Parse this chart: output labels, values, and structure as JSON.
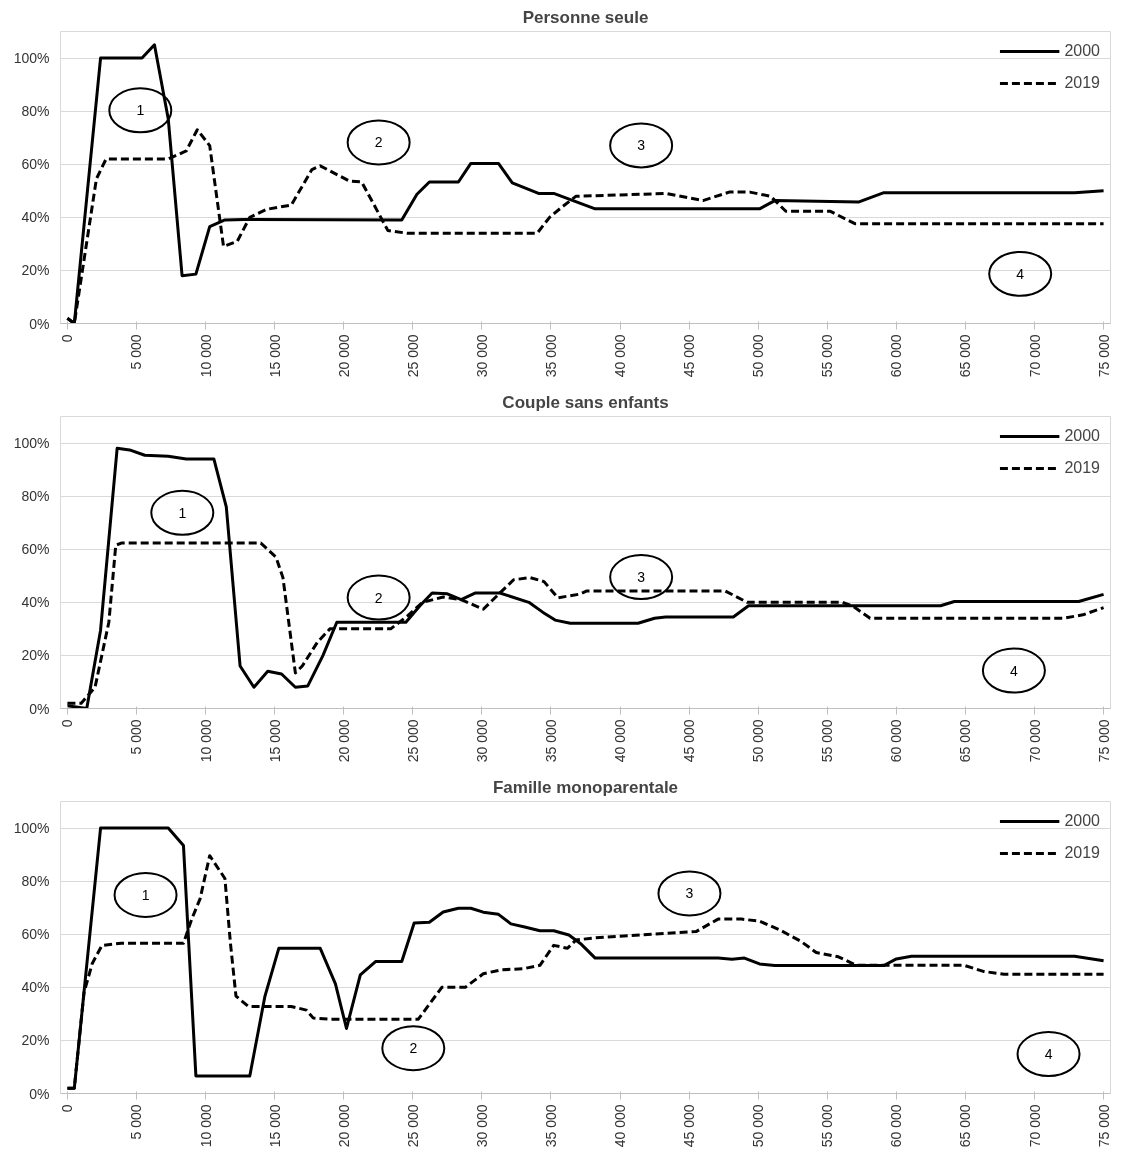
{
  "chart_data": [
    {
      "type": "line",
      "title": "Personne seule",
      "xlim": [
        -500,
        75500
      ],
      "ylim": [
        0,
        110
      ],
      "xticks": [
        0,
        {
          "value": 5000,
          "label": "5 000"
        },
        {
          "value": 10000,
          "label": "10 000"
        },
        {
          "value": 15000,
          "label": "15 000"
        },
        {
          "value": 20000,
          "label": "20 000"
        },
        {
          "value": 25000,
          "label": "25 000"
        },
        {
          "value": 30000,
          "label": "30 000"
        },
        {
          "value": 35000,
          "label": "35 000"
        },
        {
          "value": 40000,
          "label": "40 000"
        },
        {
          "value": 45000,
          "label": "45 000"
        },
        {
          "value": 50000,
          "label": "50 000"
        },
        {
          "value": 55000,
          "label": "55 000"
        },
        {
          "value": 60000,
          "label": "60 000"
        },
        {
          "value": 65000,
          "label": "65 000"
        },
        {
          "value": 70000,
          "label": "70 000"
        },
        {
          "value": 75000,
          "label": "75 000"
        }
      ],
      "yticks": [
        {
          "value": 0,
          "label": "0%"
        },
        {
          "value": 20,
          "label": "20%"
        },
        {
          "value": 40,
          "label": "40%"
        },
        {
          "value": 60,
          "label": "60%"
        },
        {
          "value": 80,
          "label": "80%"
        },
        {
          "value": 100,
          "label": "100%"
        }
      ],
      "grid": "y",
      "legend": "top right",
      "series": [
        {
          "name": "2000",
          "color": "#000000",
          "line_style": "solid",
          "x": [
            0,
            500,
            2400,
            5400,
            6300,
            7300,
            8300,
            9300,
            10300,
            11400,
            12800,
            24200,
            25300,
            26200,
            28300,
            29200,
            31200,
            32200,
            34100,
            35200,
            38200,
            50100,
            51200,
            57300,
            59100,
            72900,
            75000
          ],
          "values": [
            2,
            0,
            100,
            100,
            105,
            77,
            18,
            18.6,
            36.5,
            39,
            39.2,
            39,
            48.7,
            53.3,
            53.3,
            60.3,
            60.3,
            53,
            49,
            49,
            43.2,
            43.2,
            46.3,
            45.8,
            49.3,
            49.3,
            50
          ]
        },
        {
          "name": "2019",
          "color": "#000000",
          "line_style": "dashed",
          "x": [
            0,
            500,
            2100,
            2800,
            7300,
            8600,
            9400,
            10300,
            11300,
            12300,
            13200,
            14400,
            16200,
            17700,
            18300,
            20400,
            21300,
            23200,
            24600,
            34000,
            34900,
            35800,
            36800,
            43300,
            46000,
            47900,
            49400,
            50900,
            52000,
            55200,
            57000,
            75000
          ],
          "values": [
            2,
            0,
            54.5,
            62,
            62,
            65,
            73,
            67,
            29,
            31,
            40,
            43,
            44.6,
            58,
            59.4,
            53.7,
            53.3,
            35,
            34,
            34,
            40,
            43.9,
            47.9,
            49,
            46.3,
            49.5,
            49.5,
            47.9,
            42.3,
            42.3,
            37.6,
            37.6
          ]
        }
      ],
      "annotations": [
        "1",
        "2",
        "3",
        "4"
      ]
    },
    {
      "type": "line",
      "title": "Couple sans enfants",
      "xlim": [
        -500,
        75500
      ],
      "ylim": [
        0,
        110
      ],
      "xticks": [
        0,
        {
          "value": 5000,
          "label": "5 000"
        },
        {
          "value": 10000,
          "label": "10 000"
        },
        {
          "value": 15000,
          "label": "15 000"
        },
        {
          "value": 20000,
          "label": "20 000"
        },
        {
          "value": 25000,
          "label": "25 000"
        },
        {
          "value": 30000,
          "label": "30 000"
        },
        {
          "value": 35000,
          "label": "35 000"
        },
        {
          "value": 40000,
          "label": "40 000"
        },
        {
          "value": 45000,
          "label": "45 000"
        },
        {
          "value": 50000,
          "label": "50 000"
        },
        {
          "value": 55000,
          "label": "55 000"
        },
        {
          "value": 60000,
          "label": "60 000"
        },
        {
          "value": 65000,
          "label": "65 000"
        },
        {
          "value": 70000,
          "label": "70 000"
        },
        {
          "value": 75000,
          "label": "75 000"
        }
      ],
      "yticks": [
        {
          "value": 0,
          "label": "0%"
        },
        {
          "value": 20,
          "label": "20%"
        },
        {
          "value": 40,
          "label": "40%"
        },
        {
          "value": 60,
          "label": "60%"
        },
        {
          "value": 80,
          "label": "80%"
        },
        {
          "value": 100,
          "label": "100%"
        }
      ],
      "grid": "y",
      "legend": "top right",
      "series": [
        {
          "name": "2000",
          "color": "#000000",
          "line_style": "solid",
          "x": [
            0,
            1400,
            2400,
            3600,
            4500,
            5600,
            7300,
            8600,
            10600,
            11500,
            12500,
            13500,
            14500,
            15500,
            16500,
            17400,
            18500,
            19500,
            24500,
            25500,
            26400,
            27500,
            28500,
            29500,
            31300,
            33400,
            34400,
            35300,
            36400,
            41300,
            42500,
            43300,
            48200,
            49300,
            63200,
            64200,
            73200,
            75000
          ],
          "values": [
            1,
            0,
            29.5,
            98,
            97.4,
            95.4,
            95,
            94,
            94,
            76,
            16,
            8,
            14,
            13,
            8,
            8.5,
            20,
            32.5,
            32.5,
            38.6,
            43.5,
            43.2,
            41,
            43.5,
            43.5,
            40,
            36.3,
            33.3,
            32.1,
            32.1,
            34,
            34.5,
            34.5,
            38.7,
            38.7,
            40.3,
            40.3,
            43
          ]
        },
        {
          "name": "2019",
          "color": "#000000",
          "line_style": "dashed",
          "x": [
            0,
            1000,
            2000,
            3000,
            3500,
            3900,
            14000,
            15100,
            15600,
            16500,
            17000,
            18100,
            19000,
            23400,
            24600,
            25700,
            27200,
            28500,
            30100,
            31300,
            32300,
            33500,
            34500,
            35500,
            37100,
            37600,
            47600,
            49200,
            56100,
            56900,
            58100,
            72100,
            73500,
            75000
          ],
          "values": [
            2,
            2,
            8,
            32.5,
            61.5,
            62.3,
            62.3,
            57,
            49.3,
            13.4,
            16,
            25,
            30,
            30,
            34.8,
            40,
            42,
            41,
            37.4,
            43.5,
            48.5,
            49.3,
            47.8,
            41.7,
            43.1,
            44.3,
            44.3,
            40,
            40,
            38.4,
            34,
            34,
            35.3,
            38
          ]
        }
      ],
      "annotations": [
        "1",
        "2",
        "3",
        "4"
      ]
    },
    {
      "type": "line",
      "title": "Famille monoparentale",
      "xlim": [
        -500,
        75500
      ],
      "ylim": [
        0,
        110
      ],
      "xticks": [
        0,
        {
          "value": 5000,
          "label": "5 000"
        },
        {
          "value": 10000,
          "label": "10 000"
        },
        {
          "value": 15000,
          "label": "15 000"
        },
        {
          "value": 20000,
          "label": "20 000"
        },
        {
          "value": 25000,
          "label": "25 000"
        },
        {
          "value": 30000,
          "label": "30 000"
        },
        {
          "value": 35000,
          "label": "35 000"
        },
        {
          "value": 40000,
          "label": "40 000"
        },
        {
          "value": 45000,
          "label": "45 000"
        },
        {
          "value": 50000,
          "label": "50 000"
        },
        {
          "value": 55000,
          "label": "55 000"
        },
        {
          "value": 60000,
          "label": "60 000"
        },
        {
          "value": 65000,
          "label": "65 000"
        },
        {
          "value": 70000,
          "label": "70 000"
        },
        {
          "value": 75000,
          "label": "75 000"
        }
      ],
      "yticks": [
        {
          "value": 0,
          "label": "0%"
        },
        {
          "value": 20,
          "label": "20%"
        },
        {
          "value": 40,
          "label": "40%"
        },
        {
          "value": 60,
          "label": "60%"
        },
        {
          "value": 80,
          "label": "80%"
        },
        {
          "value": 100,
          "label": "100%"
        }
      ],
      "grid": "y",
      "legend": "top right",
      "series": [
        {
          "name": "2000",
          "color": "#000000",
          "line_style": "solid",
          "x": [
            0,
            500,
            2400,
            7300,
            8400,
            9300,
            13200,
            14300,
            15300,
            18300,
            19400,
            20200,
            21200,
            22300,
            24200,
            25100,
            26200,
            27200,
            28300,
            29200,
            30100,
            31200,
            32100,
            33100,
            34200,
            35200,
            36300,
            37200,
            38200,
            47100,
            48100,
            49000,
            50100,
            51200,
            59100,
            60000,
            61100,
            72900,
            75000
          ],
          "values": [
            2,
            2,
            100,
            100,
            93.4,
            6.6,
            6.6,
            36.7,
            54.7,
            54.7,
            41.3,
            24.5,
            44.7,
            49.7,
            49.7,
            64.2,
            64.5,
            68.4,
            69.8,
            69.8,
            68.3,
            67.5,
            63.9,
            62.7,
            61.3,
            61.3,
            59.7,
            56.2,
            51,
            51,
            50.6,
            51,
            48.8,
            48.2,
            48.2,
            50.7,
            51.7,
            51.7,
            50
          ]
        },
        {
          "name": "2019",
          "color": "#000000",
          "line_style": "dashed",
          "x": [
            0,
            500,
            1200,
            1800,
            2500,
            3900,
            8400,
            9000,
            9600,
            10300,
            11400,
            11800,
            12200,
            13100,
            16200,
            17300,
            17800,
            19100,
            25400,
            27100,
            28800,
            30100,
            31400,
            33000,
            34200,
            35200,
            36200,
            36800,
            38100,
            45500,
            47100,
            48800,
            50100,
            51500,
            53100,
            54200,
            55800,
            57100,
            64900,
            66300,
            67800,
            75000
          ],
          "values": [
            2,
            2,
            38,
            49,
            55.8,
            56.6,
            56.6,
            65.7,
            73.3,
            89.6,
            81,
            56.6,
            36.7,
            32.8,
            32.8,
            31.4,
            28.4,
            28,
            28,
            40,
            40,
            45.1,
            46.6,
            47,
            48.3,
            55.8,
            54.7,
            57.8,
            58.6,
            61,
            65.7,
            65.7,
            64.9,
            61.8,
            57.3,
            53.1,
            51.5,
            48.3,
            48.3,
            46,
            44.9,
            44.9
          ]
        }
      ],
      "annotations": [
        "1",
        "2",
        "3",
        "4"
      ]
    }
  ]
}
